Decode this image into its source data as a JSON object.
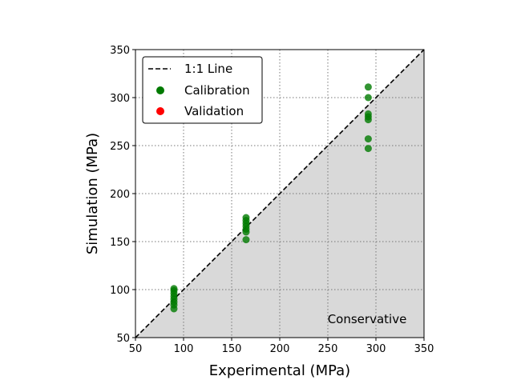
{
  "colors": {
    "calibration": "#007a00",
    "validation": "#ff0000",
    "conservative_region": "#d9d9d9",
    "grid": "#777777"
  },
  "chart_data": {
    "type": "scatter",
    "xlabel": "Experimental (MPa)",
    "ylabel": "Simulation (MPa)",
    "xlim": [
      50,
      350
    ],
    "ylim": [
      50,
      350
    ],
    "xticks": [
      50,
      100,
      150,
      200,
      250,
      300,
      350
    ],
    "yticks": [
      50,
      100,
      150,
      200,
      250,
      300,
      350
    ],
    "grid": true,
    "grid_style": "dotted",
    "legend_position": "upper-left",
    "legend": [
      {
        "label": "1:1 Line",
        "kind": "line",
        "style": "dashed"
      },
      {
        "label": "Calibration",
        "kind": "marker",
        "color_key": "calibration"
      },
      {
        "label": "Validation",
        "kind": "marker",
        "color_key": "validation"
      }
    ],
    "reference_line": {
      "label": "1:1 Line",
      "from": [
        50,
        50
      ],
      "to": [
        350,
        350
      ]
    },
    "shaded_region": {
      "label": "Conservative",
      "description": "below 1:1 line"
    },
    "series": [
      {
        "name": "Calibration",
        "color_key": "calibration",
        "points": [
          [
            90,
            101
          ],
          [
            90,
            99
          ],
          [
            90,
            96
          ],
          [
            90,
            93
          ],
          [
            90,
            90
          ],
          [
            90,
            87
          ],
          [
            90,
            84
          ],
          [
            90,
            80
          ],
          [
            165,
            175
          ],
          [
            165,
            172
          ],
          [
            165,
            169
          ],
          [
            165,
            166
          ],
          [
            165,
            163
          ],
          [
            165,
            160
          ],
          [
            165,
            152
          ],
          [
            292,
            311
          ],
          [
            292,
            300
          ],
          [
            292,
            283
          ],
          [
            292,
            280
          ],
          [
            292,
            277
          ],
          [
            292,
            257
          ],
          [
            292,
            247
          ]
        ]
      },
      {
        "name": "Validation",
        "color_key": "validation",
        "points": []
      }
    ]
  }
}
